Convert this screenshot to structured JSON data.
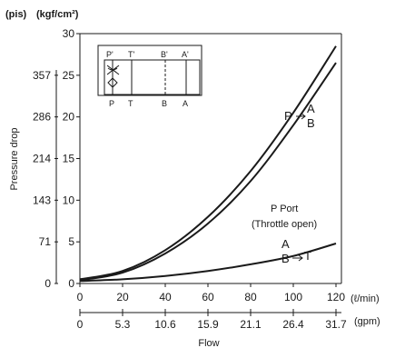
{
  "chart_data": {
    "type": "line",
    "units": {
      "psi": "(pis)",
      "kgf": "(kgf/cm²)",
      "lmin": "(ℓ/min)",
      "gpm": "(gpm)"
    },
    "ylabel": "Pressure drop",
    "xlabel": "Flow",
    "ylim": [
      0,
      30
    ],
    "xlim": [
      0,
      120
    ],
    "y_ticks_kgf": [
      "0",
      "5",
      "10",
      "15",
      "20",
      "25",
      "30"
    ],
    "y_ticks_psi": [
      "0",
      "71",
      "143",
      "214",
      "286",
      "357"
    ],
    "x_ticks_lmin": [
      "0",
      "20",
      "40",
      "60",
      "80",
      "100",
      "120"
    ],
    "x_ticks_gpm": [
      "0",
      "5.3",
      "10.6",
      "15.9",
      "21.1",
      "26.4",
      "31.7"
    ],
    "series": [
      {
        "label_parts": [
          "P",
          "A",
          "B"
        ],
        "x": [
          0,
          20,
          40,
          60,
          80,
          100,
          120
        ],
        "y": [
          0.5,
          1.5,
          4.0,
          8.0,
          13.5,
          20.5,
          28.5
        ]
      },
      {
        "label_parts": [
          "P Port",
          "(Throttle open)"
        ],
        "x": [
          0,
          20,
          40,
          60,
          80,
          100,
          120
        ],
        "y": [
          0.4,
          1.3,
          3.6,
          7.2,
          12.3,
          19.0,
          26.5
        ]
      },
      {
        "label_parts": [
          "A",
          "B",
          "T"
        ],
        "x": [
          0,
          20,
          40,
          60,
          80,
          100,
          120
        ],
        "y": [
          0.3,
          0.5,
          0.9,
          1.5,
          2.3,
          3.3,
          4.8
        ]
      }
    ],
    "symbol_ports": {
      "top": [
        "P'",
        "T'",
        "B'",
        "A'"
      ],
      "bottom": [
        "P",
        "T",
        "B",
        "A"
      ]
    }
  }
}
